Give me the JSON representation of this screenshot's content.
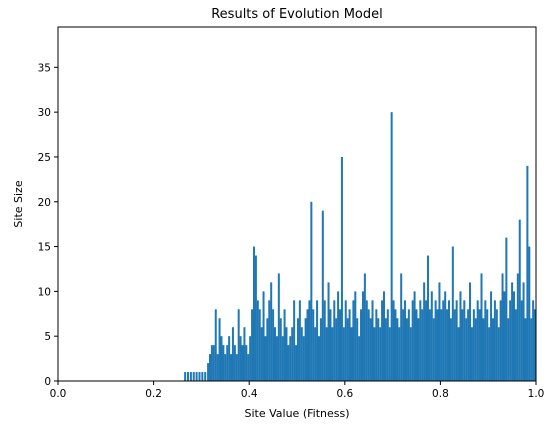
{
  "chart_data": {
    "type": "bar",
    "title": "Results of Evolution Model",
    "xlabel": "Site Value (Fitness)",
    "ylabel": "Site Size",
    "xlim": [
      0.0,
      1.0
    ],
    "ylim": [
      0,
      39.5
    ],
    "x_ticks": [
      0.0,
      0.2,
      0.4,
      0.6,
      0.8,
      1.0
    ],
    "x_tick_labels": [
      "0.0",
      "0.2",
      "0.4",
      "0.6",
      "0.8",
      "1.0"
    ],
    "y_ticks": [
      0,
      5,
      10,
      15,
      20,
      25,
      30,
      35
    ],
    "y_tick_labels": [
      "0",
      "5",
      "10",
      "15",
      "20",
      "25",
      "30",
      "35"
    ],
    "grid": false,
    "bar_color": "#1f77b4",
    "series": [
      {
        "x": [
          0.266,
          0.272,
          0.278,
          0.284,
          0.29,
          0.296,
          0.302,
          0.308,
          0.314,
          0.318,
          0.322,
          0.326,
          0.33,
          0.334,
          0.338,
          0.342,
          0.346,
          0.35,
          0.354,
          0.358,
          0.362,
          0.366,
          0.37,
          0.374,
          0.378,
          0.382,
          0.386,
          0.39,
          0.394,
          0.398,
          0.402,
          0.406,
          0.41,
          0.414,
          0.418,
          0.422,
          0.426,
          0.43,
          0.434,
          0.438,
          0.442,
          0.446,
          0.45,
          0.454,
          0.458,
          0.462,
          0.466,
          0.47,
          0.474,
          0.478,
          0.482,
          0.486,
          0.49,
          0.494,
          0.498,
          0.502,
          0.506,
          0.51,
          0.514,
          0.518,
          0.522,
          0.526,
          0.53,
          0.534,
          0.538,
          0.542,
          0.546,
          0.55,
          0.554,
          0.558,
          0.562,
          0.566,
          0.57,
          0.574,
          0.578,
          0.582,
          0.586,
          0.59,
          0.594,
          0.598,
          0.602,
          0.606,
          0.61,
          0.614,
          0.618,
          0.622,
          0.626,
          0.63,
          0.634,
          0.638,
          0.642,
          0.646,
          0.65,
          0.654,
          0.658,
          0.662,
          0.666,
          0.67,
          0.674,
          0.678,
          0.682,
          0.686,
          0.69,
          0.694,
          0.698,
          0.702,
          0.706,
          0.71,
          0.714,
          0.718,
          0.722,
          0.726,
          0.73,
          0.734,
          0.738,
          0.742,
          0.746,
          0.75,
          0.754,
          0.758,
          0.762,
          0.766,
          0.77,
          0.774,
          0.778,
          0.782,
          0.786,
          0.79,
          0.794,
          0.798,
          0.802,
          0.806,
          0.81,
          0.814,
          0.818,
          0.822,
          0.826,
          0.83,
          0.834,
          0.838,
          0.842,
          0.846,
          0.85,
          0.854,
          0.858,
          0.862,
          0.866,
          0.87,
          0.874,
          0.878,
          0.882,
          0.886,
          0.89,
          0.894,
          0.898,
          0.902,
          0.906,
          0.91,
          0.914,
          0.918,
          0.922,
          0.926,
          0.93,
          0.934,
          0.938,
          0.942,
          0.946,
          0.95,
          0.954,
          0.958,
          0.962,
          0.966,
          0.97,
          0.974,
          0.978,
          0.982,
          0.986,
          0.99,
          0.994,
          0.998
        ],
        "values": [
          1,
          1,
          1,
          1,
          1,
          1,
          1,
          1,
          2,
          3,
          4,
          4,
          8,
          3,
          7,
          5,
          4,
          3,
          4,
          5,
          3,
          6,
          4,
          3,
          8,
          5,
          4,
          6,
          4,
          3,
          5,
          8,
          15,
          14,
          9,
          8,
          6,
          10,
          5,
          7,
          9,
          11,
          8,
          6,
          5,
          12,
          7,
          5,
          8,
          6,
          4,
          5,
          6,
          9,
          4,
          7,
          9,
          6,
          5,
          7,
          8,
          9,
          20,
          8,
          6,
          9,
          5,
          7,
          19,
          9,
          6,
          11,
          8,
          6,
          9,
          7,
          10,
          8,
          25,
          6,
          9,
          7,
          8,
          6,
          9,
          10,
          7,
          5,
          8,
          10,
          12,
          9,
          8,
          7,
          9,
          6,
          8,
          7,
          6,
          9,
          10,
          7,
          8,
          6,
          30,
          9,
          8,
          7,
          6,
          12,
          8,
          9,
          7,
          8,
          6,
          9,
          10,
          8,
          7,
          9,
          8,
          11,
          9,
          14,
          8,
          10,
          7,
          9,
          8,
          11,
          8,
          9,
          10,
          8,
          9,
          7,
          15,
          8,
          9,
          6,
          10,
          8,
          9,
          7,
          8,
          11,
          6,
          8,
          7,
          9,
          8,
          12,
          7,
          9,
          8,
          6,
          10,
          7,
          9,
          8,
          6,
          9,
          12,
          10,
          16,
          7,
          9,
          11,
          10,
          8,
          12,
          18,
          9,
          11,
          7,
          24,
          15,
          7,
          9,
          8
        ]
      }
    ]
  }
}
